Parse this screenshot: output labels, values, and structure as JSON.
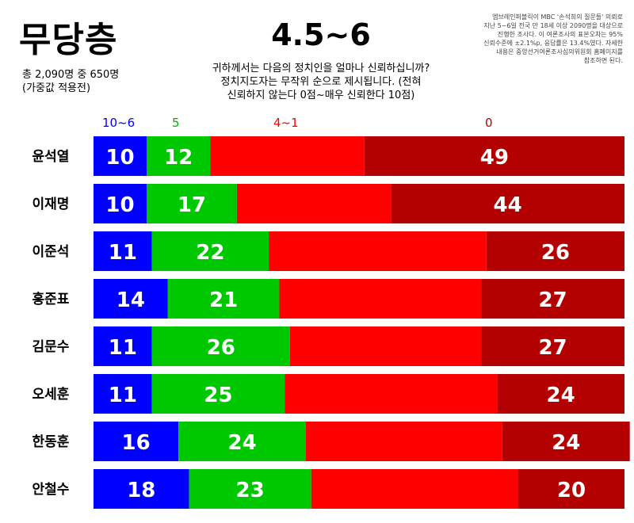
{
  "title": "무당층",
  "subtitle": [
    "총 2,090명 중 650명",
    "(가중값 적용전)"
  ],
  "score_range": "4.5~6",
  "question": [
    "귀하께서는 다음의 정치인을 얼마나 신뢰하십니까?",
    "정치지도자는 무작위 순으로 제시됩니다. (전혀",
    "신뢰하지 않는다 0점~매우 신뢰한다 10점)"
  ],
  "note": [
    "엠브레인퍼블릭이 MBC '손석희의 질문들' 의뢰로",
    "지난 5~6일 전국 만 18세 이상 2090명을 대상으로",
    "진행한 조사다. 이 여론조사의 표본오차는 95%",
    "신뢰수준에 ±2.1%p, 응답률은 13.4%였다. 자세한",
    "내용은 중앙선거여론조사심의위원회 홈페이지를",
    "참조하면 된다."
  ],
  "legend": [
    {
      "label": "10~6",
      "color": "#0000ff"
    },
    {
      "label": "5",
      "color": "#00c800"
    },
    {
      "label": "4~1",
      "color": "#ff0000"
    },
    {
      "label": "0",
      "color": "#b30000"
    }
  ],
  "chart_data": {
    "type": "bar",
    "stacked": true,
    "orientation": "horizontal",
    "categories": [
      "윤석열",
      "이재명",
      "이준석",
      "홍준표",
      "김문수",
      "오세훈",
      "한동훈",
      "안철수"
    ],
    "series": [
      {
        "name": "10~6",
        "color": "#0000ff",
        "values": [
          10,
          10,
          11,
          14,
          11,
          11,
          16,
          18
        ]
      },
      {
        "name": "5",
        "color": "#00c800",
        "values": [
          12,
          17,
          22,
          21,
          26,
          25,
          24,
          23
        ]
      },
      {
        "name": "4~1",
        "color": "#ff0000",
        "values": [
          29,
          29,
          41,
          38,
          36,
          40,
          37,
          39
        ]
      },
      {
        "name": "0",
        "color": "#b30000",
        "values": [
          49,
          44,
          26,
          27,
          27,
          24,
          24,
          20
        ]
      }
    ],
    "value_labels": [
      [
        "10",
        "12",
        "",
        "49"
      ],
      [
        "10",
        "17",
        "",
        "44"
      ],
      [
        "11",
        "22",
        "",
        "26"
      ],
      [
        "14",
        "21",
        "",
        "27"
      ],
      [
        "11",
        "26",
        "",
        "27"
      ],
      [
        "11",
        "25",
        "",
        "24"
      ],
      [
        "16",
        "24",
        "",
        "24"
      ],
      [
        "18",
        "23",
        "",
        "20"
      ]
    ],
    "xlim": [
      0,
      100
    ]
  }
}
